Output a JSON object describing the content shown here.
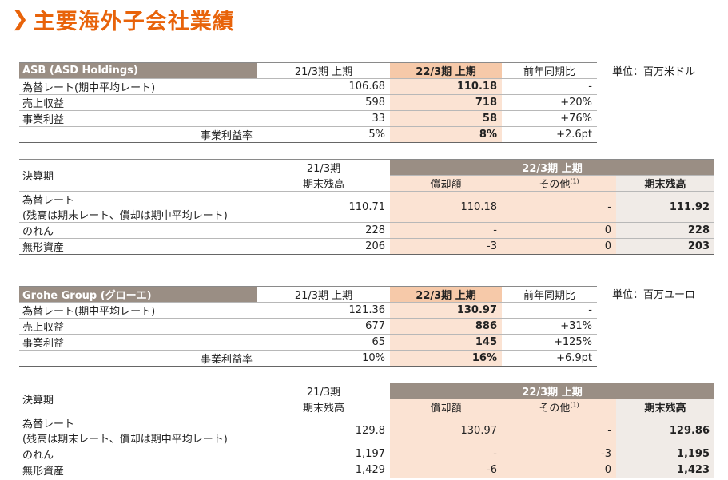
{
  "page_title": "主要海外子会社業績",
  "asb": {
    "name": "ASB (ASD Holdings)",
    "unit": "単位：百万米ドル",
    "cols": [
      "21/3期 上期",
      "22/3期 上期",
      "前年同期比"
    ],
    "rows": [
      {
        "label": "為替レート(期中平均レート)",
        "prev": "106.68",
        "cur": "110.18",
        "yoy": "-"
      },
      {
        "label": "売上収益",
        "prev": "598",
        "cur": "718",
        "yoy": "+20%"
      },
      {
        "label": "事業利益",
        "prev": "33",
        "cur": "58",
        "yoy": "+76%"
      },
      {
        "label": "事業利益率",
        "prev": "5%",
        "cur": "8%",
        "yoy": "+2.6pt"
      }
    ],
    "gw": {
      "label": "決算期",
      "prev_h1": "21/3期",
      "prev_h2": "期末残高",
      "band": "22/3期 上期",
      "amort_h": "償却額",
      "other_h": "その他",
      "other_sup": "(1)",
      "end_h": "期末残高",
      "fx_label1": "為替レート",
      "fx_label2": "(残高は期末レート、償却は期中平均レート)",
      "fx": {
        "prev": "110.71",
        "amort": "110.18",
        "other": "-",
        "end": "111.92"
      },
      "rows": [
        {
          "label": "のれん",
          "prev": "228",
          "amort": "-",
          "other": "0",
          "end": "228"
        },
        {
          "label": "無形資産",
          "prev": "206",
          "amort": "-3",
          "other": "0",
          "end": "203"
        }
      ]
    }
  },
  "grohe": {
    "name": "Grohe Group (グローエ)",
    "unit": "単位：百万ユーロ",
    "cols": [
      "21/3期 上期",
      "22/3期 上期",
      "前年同期比"
    ],
    "rows": [
      {
        "label": "為替レート(期中平均レート)",
        "prev": "121.36",
        "cur": "130.97",
        "yoy": "-"
      },
      {
        "label": "売上収益",
        "prev": "677",
        "cur": "886",
        "yoy": "+31%"
      },
      {
        "label": "事業利益",
        "prev": "65",
        "cur": "145",
        "yoy": "+125%"
      },
      {
        "label": "事業利益率",
        "prev": "10%",
        "cur": "16%",
        "yoy": "+6.9pt"
      }
    ],
    "gw": {
      "label": "決算期",
      "prev_h1": "21/3期",
      "prev_h2": "期末残高",
      "band": "22/3期 上期",
      "amort_h": "償却額",
      "other_h": "その他",
      "other_sup": "(1)",
      "end_h": "期末残高",
      "fx_label1": "為替レート",
      "fx_label2": "(残高は期末レート、償却は期中平均レート)",
      "fx": {
        "prev": "129.8",
        "amort": "130.97",
        "other": "-",
        "end": "129.86"
      },
      "rows": [
        {
          "label": "のれん",
          "prev": "1,197",
          "amort": "-",
          "other": "-3",
          "end": "1,195"
        },
        {
          "label": "無形資産",
          "prev": "1,429",
          "amort": "-6",
          "other": "0",
          "end": "1,423"
        }
      ]
    }
  }
}
